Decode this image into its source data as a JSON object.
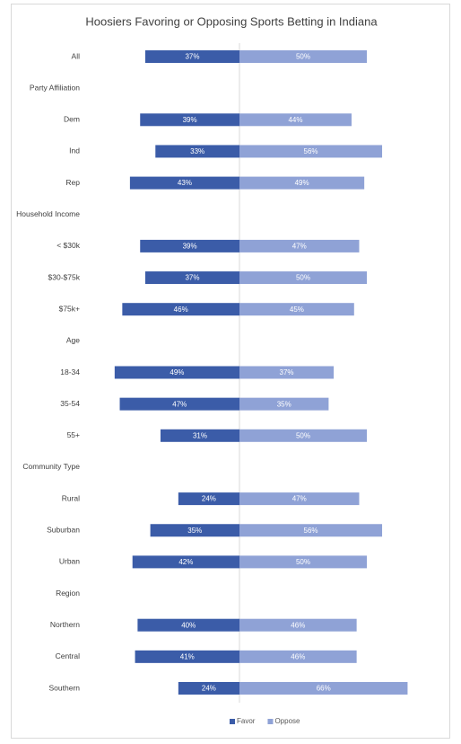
{
  "chart_data": {
    "type": "diverging-bar",
    "title": "Hoosiers Favoring or Opposing Sports Betting in Indiana",
    "categories": [
      "All",
      "Party Affiliation",
      "Dem",
      "Ind",
      "Rep",
      "Household Income",
      "< $30k",
      "$30-$75k",
      "$75k+",
      "Age",
      "18-34",
      "35-54",
      "55+",
      "Community Type",
      "Rural",
      "Suburban",
      "Urban",
      "Region",
      "Northern",
      "Central",
      "Southern"
    ],
    "series": [
      {
        "name": "Favor",
        "color": "#3b5ca8",
        "values": [
          37,
          null,
          39,
          33,
          43,
          null,
          39,
          37,
          46,
          null,
          49,
          47,
          31,
          null,
          24,
          35,
          42,
          null,
          40,
          41,
          24
        ],
        "value_labels": [
          "37%",
          null,
          "39%",
          "33%",
          "43%",
          null,
          "39%",
          "37%",
          "46%",
          null,
          "49%",
          "47%",
          "31%",
          null,
          "24%",
          "35%",
          "42%",
          null,
          "40%",
          "41%",
          "24%"
        ]
      },
      {
        "name": "Oppose",
        "color": "#8fa2d6",
        "values": [
          50,
          null,
          44,
          56,
          49,
          null,
          47,
          50,
          45,
          null,
          37,
          35,
          50,
          null,
          47,
          56,
          50,
          null,
          46,
          46,
          66
        ],
        "value_labels": [
          "50%",
          null,
          "44%",
          "56%",
          "49%",
          null,
          "47%",
          "50%",
          "45%",
          null,
          "37%",
          "35%",
          "50%",
          null,
          "47%",
          "56%",
          "50%",
          null,
          "46%",
          "46%",
          "66%"
        ]
      }
    ],
    "legend": "bottom"
  }
}
